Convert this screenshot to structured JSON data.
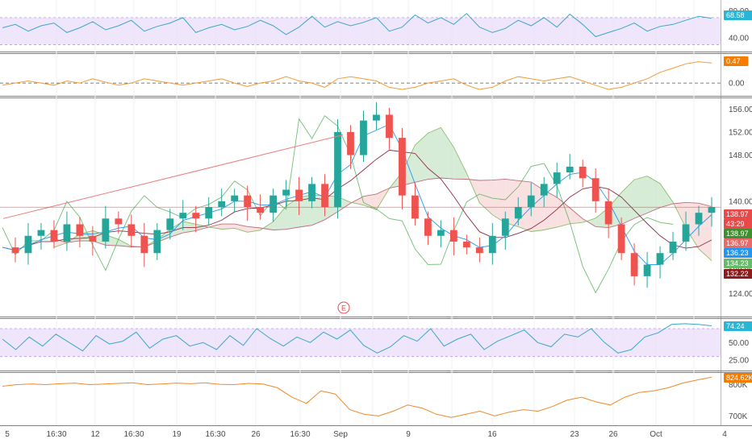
{
  "colors": {
    "up": "#26a69a",
    "down": "#ef5350",
    "rsi_line": "#3aa7c9",
    "rsi_band": "#e9dcfb",
    "osc_line": "#f39b3a",
    "vol_line": "#f0892a",
    "kumo_bull": "#c8e6c9",
    "kumo_bear": "#f8d7d7",
    "span_a": "#8bbf6a",
    "span_b": "#c26d7b",
    "tenkan": "#2196f3",
    "kijun": "#8e2c48",
    "lagging": "#4caf50",
    "trendline": "#f07b7b"
  },
  "x_axis": {
    "labels": [
      "5",
      "16:30",
      "12",
      "16:30",
      "19",
      "16:30",
      "26",
      "16:30",
      "Sep",
      "9",
      "16",
      "23",
      "26",
      "Oct",
      "4"
    ]
  },
  "panels": {
    "rsi_top": {
      "ticks": [
        "80.00",
        "40.00"
      ],
      "badge": {
        "value": "68.58",
        "color": "#29b6d6"
      }
    },
    "oscillator": {
      "ticks": [
        "0.00"
      ],
      "badge": {
        "value": "0.47",
        "color": "#f57c00"
      }
    },
    "price": {
      "ticks": [
        "156.00",
        "152.00",
        "148.00",
        "140.00",
        "128.00",
        "124.00"
      ],
      "earnings_marker": "E",
      "badges": [
        {
          "label": "138.97",
          "color": "#e84a4a"
        },
        {
          "label": "43:29",
          "color": "#e84a4a"
        },
        {
          "label": "138.97",
          "color": "#3f8f2f"
        },
        {
          "label": "136.97",
          "color": "#e86a6a"
        },
        {
          "label": "136.23",
          "color": "#2196f3"
        },
        {
          "label": "134.23",
          "color": "#66bb6a"
        },
        {
          "label": "132.22",
          "color": "#8e1c1c"
        }
      ]
    },
    "rsi_bottom": {
      "ticks": [
        "50.00",
        "25.00"
      ],
      "badge": {
        "value": "74.24",
        "color": "#29b6d6"
      }
    },
    "volume": {
      "ticks": [
        "800K",
        "700K"
      ],
      "badge": {
        "value": "824.62K",
        "color": "#f57c00"
      }
    }
  },
  "chart_data": {
    "type": "line",
    "series": [
      {
        "values": [
          132,
          131,
          134,
          135,
          133,
          136,
          134,
          133,
          137,
          136,
          134,
          131,
          135,
          137,
          138,
          137,
          139,
          140,
          141,
          139,
          138,
          141,
          142,
          140,
          143,
          139,
          152,
          148,
          154,
          155,
          151,
          141,
          137,
          134,
          135,
          133,
          132,
          131,
          134,
          137,
          139,
          141,
          143,
          145,
          146,
          144,
          140,
          136,
          131,
          127,
          129,
          131,
          133,
          136,
          138,
          139
        ]
      },
      {
        "values": [
          55,
          60,
          50,
          58,
          62,
          48,
          55,
          64,
          52,
          58,
          66,
          50,
          57,
          62,
          70,
          48,
          55,
          60,
          52,
          57,
          66,
          58,
          45,
          56,
          72,
          56,
          64,
          58,
          63,
          70,
          50,
          56,
          74,
          62,
          70,
          60,
          76,
          56,
          48,
          54,
          66,
          58,
          70,
          56,
          75,
          60,
          42,
          48,
          54,
          62,
          50,
          57,
          60,
          66,
          72,
          69
        ]
      },
      {
        "values": [
          -0.05,
          0,
          0.05,
          0,
          -0.05,
          0.05,
          0,
          0.1,
          0.02,
          -0.05,
          0,
          0.1,
          0.05,
          0,
          -0.05,
          0,
          0.05,
          0.1,
          0,
          -0.08,
          0,
          0.05,
          0.15,
          0.05,
          0,
          -0.1,
          0.1,
          0.15,
          0.1,
          0.05,
          -0.1,
          -0.15,
          -0.1,
          0,
          0.05,
          0.1,
          -0.05,
          -0.15,
          -0.1,
          0.05,
          0.15,
          0.1,
          0.05,
          0.1,
          0.15,
          0.05,
          -0.05,
          -0.15,
          -0.1,
          0,
          0.1,
          0.25,
          0.35,
          0.45,
          0.5,
          0.47
        ]
      },
      {
        "values": [
          55,
          40,
          58,
          45,
          62,
          50,
          38,
          60,
          48,
          52,
          65,
          42,
          55,
          60,
          45,
          50,
          40,
          60,
          46,
          70,
          56,
          45,
          58,
          50,
          65,
          55,
          68,
          46,
          35,
          44,
          60,
          52,
          70,
          45,
          55,
          62,
          40,
          52,
          60,
          68,
          50,
          44,
          62,
          58,
          70,
          50,
          35,
          40,
          58,
          64,
          76,
          77,
          76,
          74
        ]
      },
      {
        "values": [
          795,
          800,
          802,
          800,
          803,
          805,
          800,
          802,
          804,
          806,
          800,
          802,
          805,
          803,
          806,
          801,
          800,
          804,
          802,
          790,
          760,
          740,
          780,
          770,
          720,
          705,
          700,
          715,
          735,
          725,
          705,
          695,
          705,
          715,
          700,
          712,
          720,
          715,
          730,
          750,
          760,
          745,
          735,
          760,
          775,
          780,
          790,
          805,
          815,
          824
        ]
      }
    ]
  }
}
